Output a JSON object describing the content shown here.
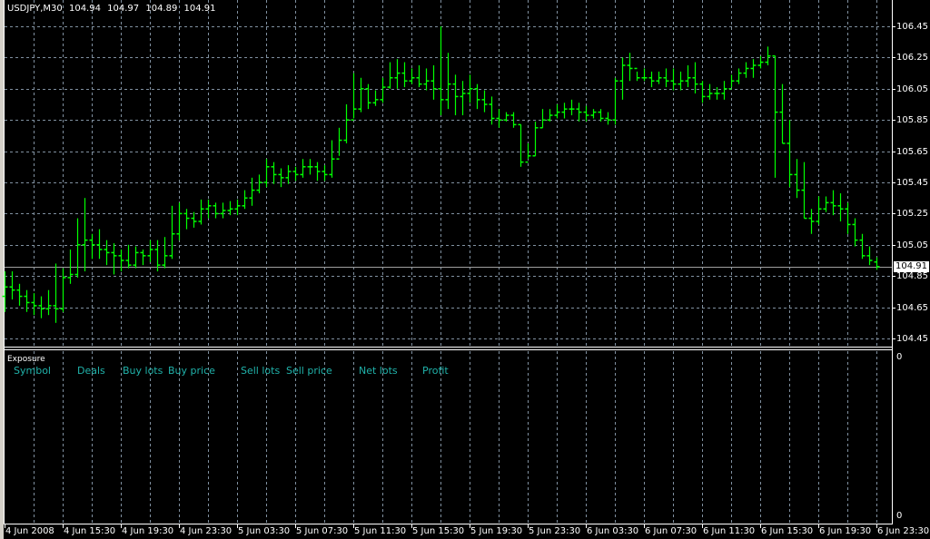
{
  "header": {
    "symbol": "USDJPY,M30",
    "open": "104.94",
    "high": "104.97",
    "low": "104.89",
    "close": "104.91"
  },
  "current_price": "104.91",
  "price_axis": [
    "106.45",
    "106.25",
    "106.05",
    "105.85",
    "105.65",
    "105.45",
    "105.25",
    "105.05",
    "104.85",
    "104.65",
    "104.45"
  ],
  "time_axis": [
    "4 Jun 2008",
    "4 Jun 15:30",
    "4 Jun 19:30",
    "4 Jun 23:30",
    "5 Jun 03:30",
    "5 Jun 07:30",
    "5 Jun 11:30",
    "5 Jun 15:30",
    "5 Jun 19:30",
    "5 Jun 23:30",
    "6 Jun 03:30",
    "6 Jun 07:30",
    "6 Jun 11:30",
    "6 Jun 15:30",
    "6 Jun 19:30",
    "6 Jun 23:30"
  ],
  "exposure": {
    "title": "Exposure",
    "columns": [
      "Symbol",
      "Deals",
      "Buy lots",
      "Buy price",
      "Sell lots",
      "Sell price",
      "Net lots",
      "Profit"
    ],
    "scale_top": "0",
    "scale_bottom": "0"
  },
  "colors": {
    "background": "#000000",
    "bars": "#00ff00",
    "grid": "#8090a0",
    "columns": "#20b2aa",
    "price_line": "#a0a0a0"
  },
  "chart_data": {
    "type": "ohlc",
    "timeframe": "M30",
    "ylim": [
      104.45,
      106.45
    ],
    "grid": true,
    "close": [
      104.78,
      104.76,
      104.72,
      104.68,
      104.66,
      104.64,
      104.66,
      104.64,
      104.84,
      104.86,
      105.05,
      105.08,
      105.05,
      105.02,
      105.0,
      104.98,
      104.95,
      104.92,
      105.0,
      104.98,
      105.02,
      104.92,
      104.98,
      105.12,
      105.25,
      105.22,
      105.2,
      105.28,
      105.3,
      105.25,
      105.27,
      105.28,
      105.3,
      105.35,
      105.4,
      105.45,
      105.55,
      105.5,
      105.48,
      105.52,
      105.5,
      105.55,
      105.55,
      105.52,
      105.5,
      105.6,
      105.72,
      105.85,
      105.92,
      106.05,
      105.96,
      105.98,
      106.06,
      106.12,
      106.15,
      106.1,
      106.12,
      106.08,
      106.1,
      106.05,
      105.98,
      106.08,
      106.0,
      106.02,
      106.05,
      105.98,
      105.95,
      105.86,
      105.85,
      105.88,
      105.82,
      105.58,
      105.62,
      105.8,
      105.85,
      105.88,
      105.9,
      105.92,
      105.92,
      105.9,
      105.88,
      105.9,
      105.86,
      105.85,
      106.1,
      106.2,
      106.18,
      106.12,
      106.12,
      106.1,
      106.12,
      106.1,
      106.08,
      106.1,
      106.12,
      106.08,
      106.0,
      106.02,
      106.02,
      106.05,
      106.1,
      106.15,
      106.18,
      106.2,
      106.22,
      106.26,
      105.9,
      105.7,
      105.5,
      105.4,
      105.22,
      105.2,
      105.28,
      105.32,
      105.3,
      105.28,
      105.18,
      105.08,
      104.98,
      104.95,
      104.91
    ],
    "high": [
      104.88,
      104.88,
      104.8,
      104.76,
      104.74,
      104.72,
      104.76,
      104.93,
      104.9,
      105.02,
      105.22,
      105.35,
      105.12,
      105.15,
      105.08,
      105.06,
      105.02,
      105.05,
      105.04,
      105.02,
      105.08,
      105.08,
      105.1,
      105.3,
      105.32,
      105.28,
      105.26,
      105.34,
      105.34,
      105.32,
      105.32,
      105.33,
      105.34,
      105.4,
      105.48,
      105.5,
      105.6,
      105.58,
      105.54,
      105.56,
      105.55,
      105.6,
      105.6,
      105.58,
      105.56,
      105.72,
      105.8,
      105.95,
      106.15,
      106.12,
      106.08,
      106.04,
      106.12,
      106.22,
      106.24,
      106.22,
      106.18,
      106.2,
      106.18,
      106.2,
      106.45,
      106.28,
      106.14,
      106.1,
      106.14,
      106.08,
      106.04,
      106.0,
      105.92,
      105.9,
      105.9,
      105.82,
      105.7,
      105.84,
      105.92,
      105.92,
      105.95,
      105.96,
      105.98,
      105.96,
      105.94,
      105.92,
      105.92,
      105.9,
      106.12,
      106.25,
      106.28,
      106.16,
      106.18,
      106.16,
      106.16,
      106.18,
      106.18,
      106.16,
      106.2,
      106.22,
      106.1,
      106.08,
      106.06,
      106.1,
      106.14,
      106.18,
      106.22,
      106.24,
      106.26,
      106.32,
      106.26,
      106.08,
      105.85,
      105.6,
      105.58,
      105.28,
      105.36,
      105.36,
      105.4,
      105.38,
      105.32,
      105.22,
      105.12,
      105.04,
      104.97
    ],
    "low": [
      104.62,
      104.7,
      104.66,
      104.62,
      104.6,
      104.58,
      104.6,
      104.55,
      104.62,
      104.8,
      104.84,
      104.88,
      104.96,
      104.96,
      104.92,
      104.86,
      104.88,
      104.9,
      104.9,
      104.92,
      104.94,
      104.88,
      104.9,
      104.96,
      105.08,
      105.15,
      105.16,
      105.18,
      105.22,
      105.22,
      105.22,
      105.24,
      105.24,
      105.28,
      105.3,
      105.38,
      105.42,
      105.44,
      105.42,
      105.44,
      105.46,
      105.48,
      105.5,
      105.46,
      105.46,
      105.48,
      105.62,
      105.7,
      105.86,
      105.9,
      105.92,
      105.94,
      105.96,
      106.05,
      106.05,
      106.06,
      106.08,
      106.06,
      106.04,
      105.98,
      105.88,
      105.92,
      105.88,
      105.88,
      105.96,
      105.92,
      105.9,
      105.82,
      105.8,
      105.84,
      105.8,
      105.55,
      105.6,
      105.62,
      105.8,
      105.84,
      105.86,
      105.86,
      105.88,
      105.84,
      105.84,
      105.86,
      105.84,
      105.82,
      105.82,
      105.98,
      106.1,
      106.1,
      106.1,
      106.06,
      106.08,
      106.06,
      106.04,
      106.04,
      106.06,
      106.02,
      105.96,
      105.98,
      105.98,
      105.98,
      106.06,
      106.08,
      106.12,
      106.12,
      106.18,
      106.2,
      105.48,
      105.7,
      105.42,
      105.35,
      105.22,
      105.12,
      105.18,
      105.26,
      105.24,
      105.2,
      105.12,
      105.04,
      104.96,
      104.92,
      104.89
    ],
    "first_open": 104.72,
    "last_open": 104.94
  }
}
